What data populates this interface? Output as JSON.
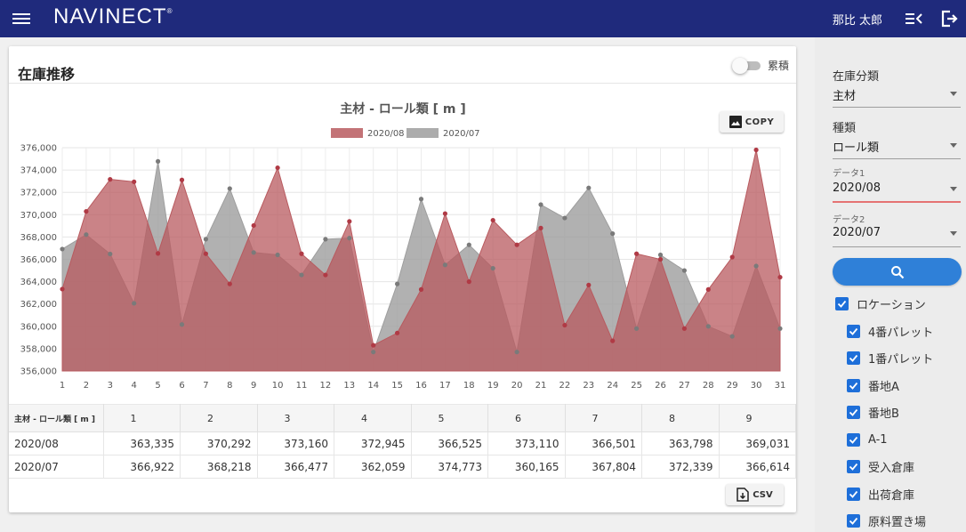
{
  "header": {
    "brand": "NAVINECT",
    "brand_mark": "®",
    "user": "那比 太郎",
    "menu_icon": "hamburger-menu-icon",
    "panel_icon": "collapse-panel-icon",
    "logout_icon": "logout-icon",
    "color": "#1f2a7c"
  },
  "card": {
    "title": "在庫推移",
    "toggle_label": "累積",
    "toggle_on": false,
    "copy_label": "COPY",
    "csv_label": "CSV"
  },
  "chart_data": {
    "type": "area",
    "title": "主材 - ロール類 [ m ]",
    "x": [
      1,
      2,
      3,
      4,
      5,
      6,
      7,
      8,
      9,
      10,
      11,
      12,
      13,
      14,
      15,
      16,
      17,
      18,
      19,
      20,
      21,
      22,
      23,
      24,
      25,
      26,
      27,
      28,
      29,
      30,
      31
    ],
    "ylim": [
      356000,
      376000
    ],
    "yticks": [
      356000,
      358000,
      360000,
      362000,
      364000,
      366000,
      368000,
      370000,
      372000,
      374000,
      376000
    ],
    "ytick_labels": [
      "356,000",
      "358,000",
      "360,000",
      "362,000",
      "364,000",
      "366,000",
      "368,000",
      "370,000",
      "372,000",
      "374,000",
      "376,000"
    ],
    "grid": true,
    "legend_position": "top",
    "series": [
      {
        "name": "2020/08",
        "color": "#b85a5f",
        "values": [
          363335,
          370292,
          373160,
          372945,
          366525,
          373110,
          366501,
          363798,
          369031,
          374200,
          366500,
          364600,
          369400,
          358300,
          359400,
          363300,
          370100,
          364000,
          369500,
          367300,
          368800,
          360100,
          363700,
          358700,
          366500,
          366000,
          359800,
          363300,
          366200,
          375800,
          364400
        ]
      },
      {
        "name": "2020/07",
        "color": "#9e9e9e",
        "values": [
          366922,
          368218,
          366477,
          362059,
          374773,
          360165,
          367804,
          372339,
          366614,
          366400,
          364600,
          367800,
          367900,
          357700,
          363800,
          371400,
          365500,
          367300,
          365200,
          357700,
          370900,
          369700,
          372400,
          368300,
          359800,
          366400,
          365000,
          360000,
          359100,
          365400,
          359800
        ]
      }
    ]
  },
  "table": {
    "corner": "主材 - ロール類 [ m ]",
    "columns": [
      "1",
      "2",
      "3",
      "4",
      "5",
      "6",
      "7",
      "8",
      "9"
    ],
    "rows": [
      {
        "label": "2020/08",
        "cells": [
          "363,335",
          "370,292",
          "373,160",
          "372,945",
          "366,525",
          "373,110",
          "366,501",
          "363,798",
          "369,031"
        ]
      },
      {
        "label": "2020/07",
        "cells": [
          "366,922",
          "368,218",
          "366,477",
          "362,059",
          "374,773",
          "360,165",
          "367,804",
          "372,339",
          "366,614"
        ]
      }
    ]
  },
  "sidebar": {
    "category_label": "在庫分類",
    "category_value": "主材",
    "type_label": "種類",
    "type_value": "ロール類",
    "data1_label": "データ1",
    "data1_value": "2020/08",
    "data2_label": "データ2",
    "data2_value": "2020/07",
    "search_icon": "search-icon",
    "accent": "#2f80d8",
    "location_label": "ロケーション",
    "locations": [
      "4番パレット",
      "1番パレット",
      "番地A",
      "番地B",
      "A-1",
      "受入倉庫",
      "出荷倉庫",
      "原料置き場"
    ]
  }
}
